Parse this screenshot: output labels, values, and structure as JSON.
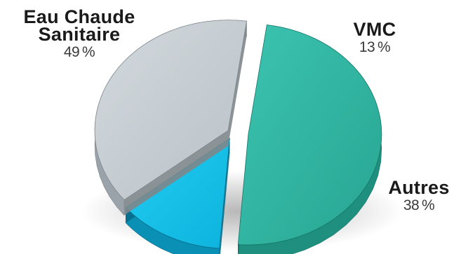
{
  "chart_data": {
    "type": "pie",
    "title": "",
    "categories": [
      "Eau Chaude Sanitaire",
      "VMC",
      "Autres"
    ],
    "values": [
      49,
      13,
      38
    ],
    "labels": [
      {
        "name_lines": [
          "Eau Chaude",
          "Sanitaire"
        ],
        "value_text": "49 %"
      },
      {
        "name_lines": [
          "VMC"
        ],
        "value_text": "13 %"
      },
      {
        "name_lines": [
          "Autres"
        ],
        "value_text": "38 %"
      }
    ],
    "colors": {
      "Eau Chaude Sanitaire": {
        "top": "#2db3a0",
        "side": "#1f8f7f",
        "edge": "#167466"
      },
      "VMC": {
        "top": "#12bfe8",
        "side": "#0a8fb5",
        "edge": "#086d8a"
      },
      "Autres": {
        "top": "#c5ccd1",
        "side": "#9aa3a9",
        "edge": "#7e878c"
      }
    },
    "legend": "none",
    "style": "3d-exploded"
  }
}
